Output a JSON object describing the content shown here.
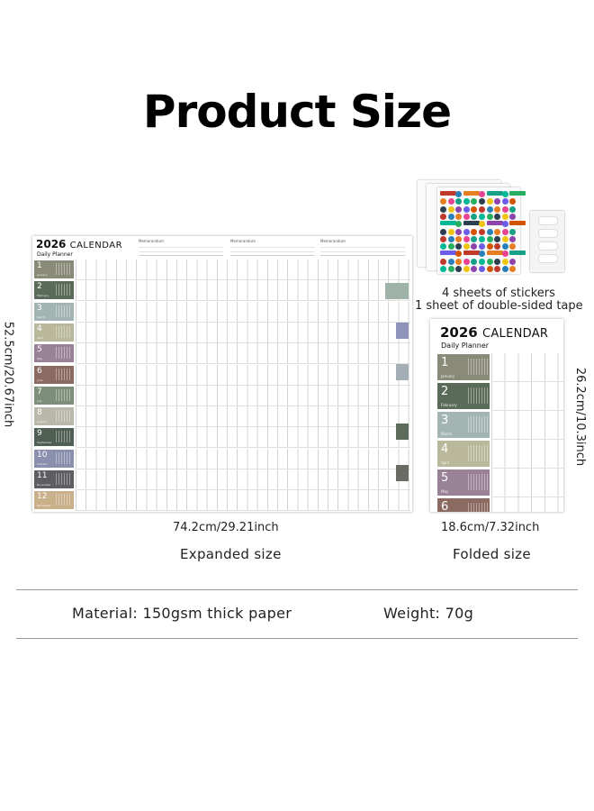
{
  "title": "Product Size",
  "calendar": {
    "year": "2026",
    "heading": "CALENDAR",
    "subheading": "Daily Planner",
    "memo_label": "Memorandum",
    "months": [
      {
        "num": "1",
        "name": "January",
        "color": "#8a8a78"
      },
      {
        "num": "2",
        "name": "February",
        "color": "#5b6b5a"
      },
      {
        "num": "3",
        "name": "March",
        "color": "#a3b5b3"
      },
      {
        "num": "4",
        "name": "April",
        "color": "#b9b89b"
      },
      {
        "num": "5",
        "name": "May",
        "color": "#9a8296"
      },
      {
        "num": "6",
        "name": "June",
        "color": "#8b6a62"
      },
      {
        "num": "7",
        "name": "July",
        "color": "#7d8f78"
      },
      {
        "num": "8",
        "name": "August",
        "color": "#b9b8aa"
      },
      {
        "num": "9",
        "name": "September",
        "color": "#4f5f53"
      },
      {
        "num": "10",
        "name": "October",
        "color": "#8b8fae"
      },
      {
        "num": "11",
        "name": "November",
        "color": "#5d5d62"
      },
      {
        "num": "12",
        "name": "December",
        "color": "#c9b08a"
      }
    ]
  },
  "dimensions": {
    "expanded_width": "74.2cm/29.21inch",
    "expanded_height": "52.5cm/20.67inch",
    "folded_width": "18.6cm/7.32inch",
    "folded_height": "26.2cm/10.3inch"
  },
  "captions": {
    "expanded": "Expanded size",
    "folded": "Folded size",
    "stickers": "4 sheets of stickers",
    "tape": "1 sheet of double-sided tape"
  },
  "specs": {
    "material": "Material: 150gsm thick paper",
    "weight": "Weight: 70g"
  },
  "colors": {
    "sticker_palette": [
      "#c0392b",
      "#2c3e50",
      "#e67e22",
      "#8e44ad",
      "#16a085",
      "#d35400",
      "#27ae60",
      "#2980b9",
      "#f1c40f",
      "#e84393",
      "#6c5ce7",
      "#00b894"
    ]
  }
}
